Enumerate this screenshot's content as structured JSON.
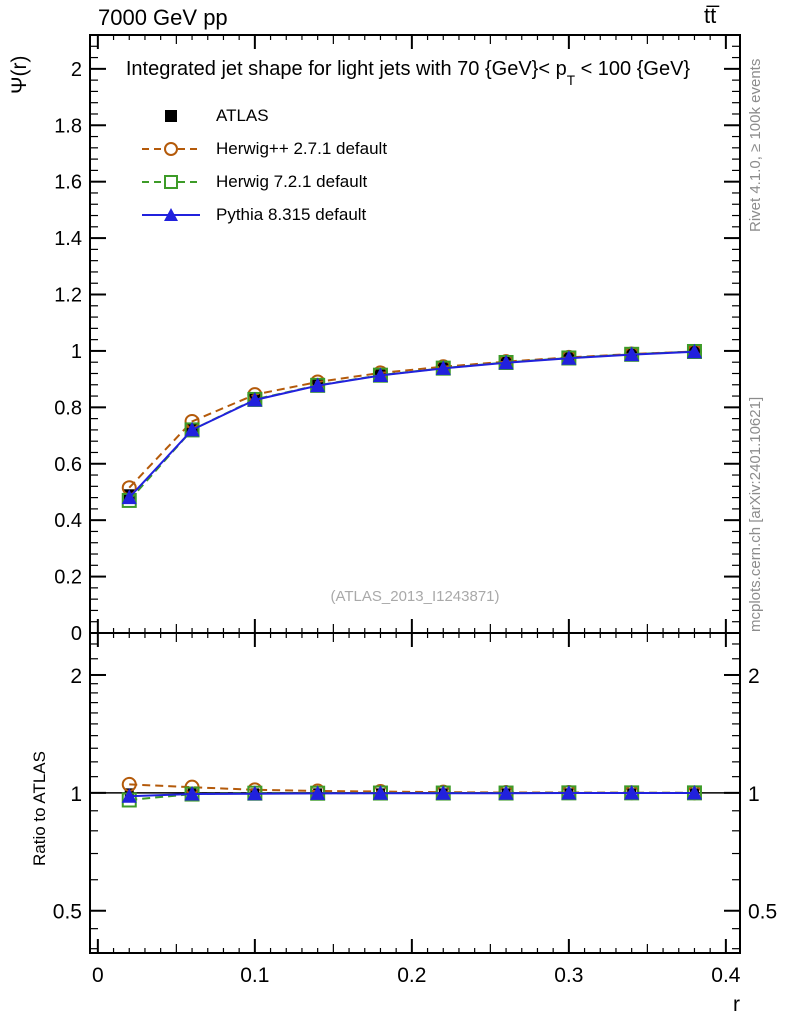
{
  "header": {
    "beam": "7000 GeV pp",
    "process": "tt̅"
  },
  "captions": {
    "right_top": "Rivet 4.1.0, ≥ 100k events",
    "right_bottom": "mcplots.cern.ch [arXiv:2401.10621]",
    "watermark": "(ATLAS_2013_I1243871)"
  },
  "chart_data": {
    "type": "line",
    "title_parts": {
      "pre": "Integrated jet shape for light jets with 70 {GeV}< p",
      "sub": "T",
      "post": " < 100 {GeV}"
    },
    "ylabel_main": "Ψ(r)",
    "ylabel_ratio": "Ratio to ATLAS",
    "xlabel": "r",
    "xlim": [
      -0.005,
      0.409
    ],
    "ylim_main": [
      0,
      2.12
    ],
    "ylim_ratio": [
      0.39,
      2.56
    ],
    "yscale_ratio": "log",
    "grid": false,
    "legend_position": "top-left",
    "x": [
      0.02,
      0.06,
      0.1,
      0.14,
      0.18,
      0.22,
      0.26,
      0.3,
      0.34,
      0.38
    ],
    "x_ticks": {
      "values": [
        0,
        0.1,
        0.2,
        0.3,
        0.4
      ],
      "labels": [
        "0",
        "0.1",
        "0.2",
        "0.3",
        "0.4"
      ]
    },
    "y_ticks_main": {
      "values": [
        2,
        1.8,
        1.6,
        1.4,
        1.2,
        1,
        0.8,
        0.6,
        0.4,
        0.2,
        0
      ],
      "labels": [
        "2",
        "1.8",
        "1.6",
        "1.4",
        "1.2",
        "1",
        "0.8",
        "0.6",
        "0.4",
        "0.2",
        "0"
      ]
    },
    "y_ticks_ratio": {
      "values": [
        2,
        1,
        0.5
      ],
      "labels": [
        "2",
        "1",
        "0.5"
      ],
      "minor": [
        0.4,
        0.45,
        0.6,
        0.7,
        0.8,
        0.9,
        1.1,
        1.2,
        1.3,
        1.4,
        1.5,
        1.6,
        1.7,
        1.8,
        1.9,
        2.2,
        2.4
      ]
    },
    "series": [
      {
        "name": "ATLAS",
        "role": "data",
        "color": "#000000",
        "line": "none",
        "marker": "square-filled",
        "values": [
          0.49,
          0.725,
          0.83,
          0.88,
          0.915,
          0.94,
          0.96,
          0.975,
          0.988,
          0.998
        ],
        "errors": [
          0.012,
          0.01,
          0.008,
          0.006,
          0.005,
          0.004,
          0.003,
          0.003,
          0.002,
          0.002
        ],
        "ratio": [
          1,
          1,
          1,
          1,
          1,
          1,
          1,
          1,
          1,
          1
        ]
      },
      {
        "name": "Herwig++ 2.7.1 default",
        "role": "mc",
        "color": "#b45a0a",
        "line": "dashed",
        "marker": "circle-open",
        "values": [
          0.515,
          0.75,
          0.845,
          0.89,
          0.922,
          0.944,
          0.962,
          0.977,
          0.989,
          0.998
        ],
        "ratio": [
          1.051,
          1.034,
          1.018,
          1.011,
          1.008,
          1.004,
          1.002,
          1.002,
          1.001,
          1.0
        ]
      },
      {
        "name": "Herwig 7.2.1 default",
        "role": "mc",
        "color": "#3d9b28",
        "line": "dashed",
        "marker": "square-open",
        "values": [
          0.47,
          0.72,
          0.828,
          0.878,
          0.914,
          0.939,
          0.959,
          0.975,
          0.988,
          0.998
        ],
        "ratio": [
          0.959,
          0.993,
          0.998,
          0.998,
          0.999,
          0.999,
          0.999,
          1.0,
          1.0,
          1.0
        ]
      },
      {
        "name": "Pythia 8.315 default",
        "role": "mc",
        "color": "#2121dd",
        "line": "solid",
        "marker": "triangle-filled",
        "values": [
          0.48,
          0.72,
          0.826,
          0.877,
          0.913,
          0.938,
          0.958,
          0.974,
          0.987,
          0.997
        ],
        "ratio": [
          0.98,
          0.993,
          0.995,
          0.997,
          0.998,
          0.998,
          0.998,
          0.999,
          0.999,
          0.999
        ]
      }
    ]
  }
}
